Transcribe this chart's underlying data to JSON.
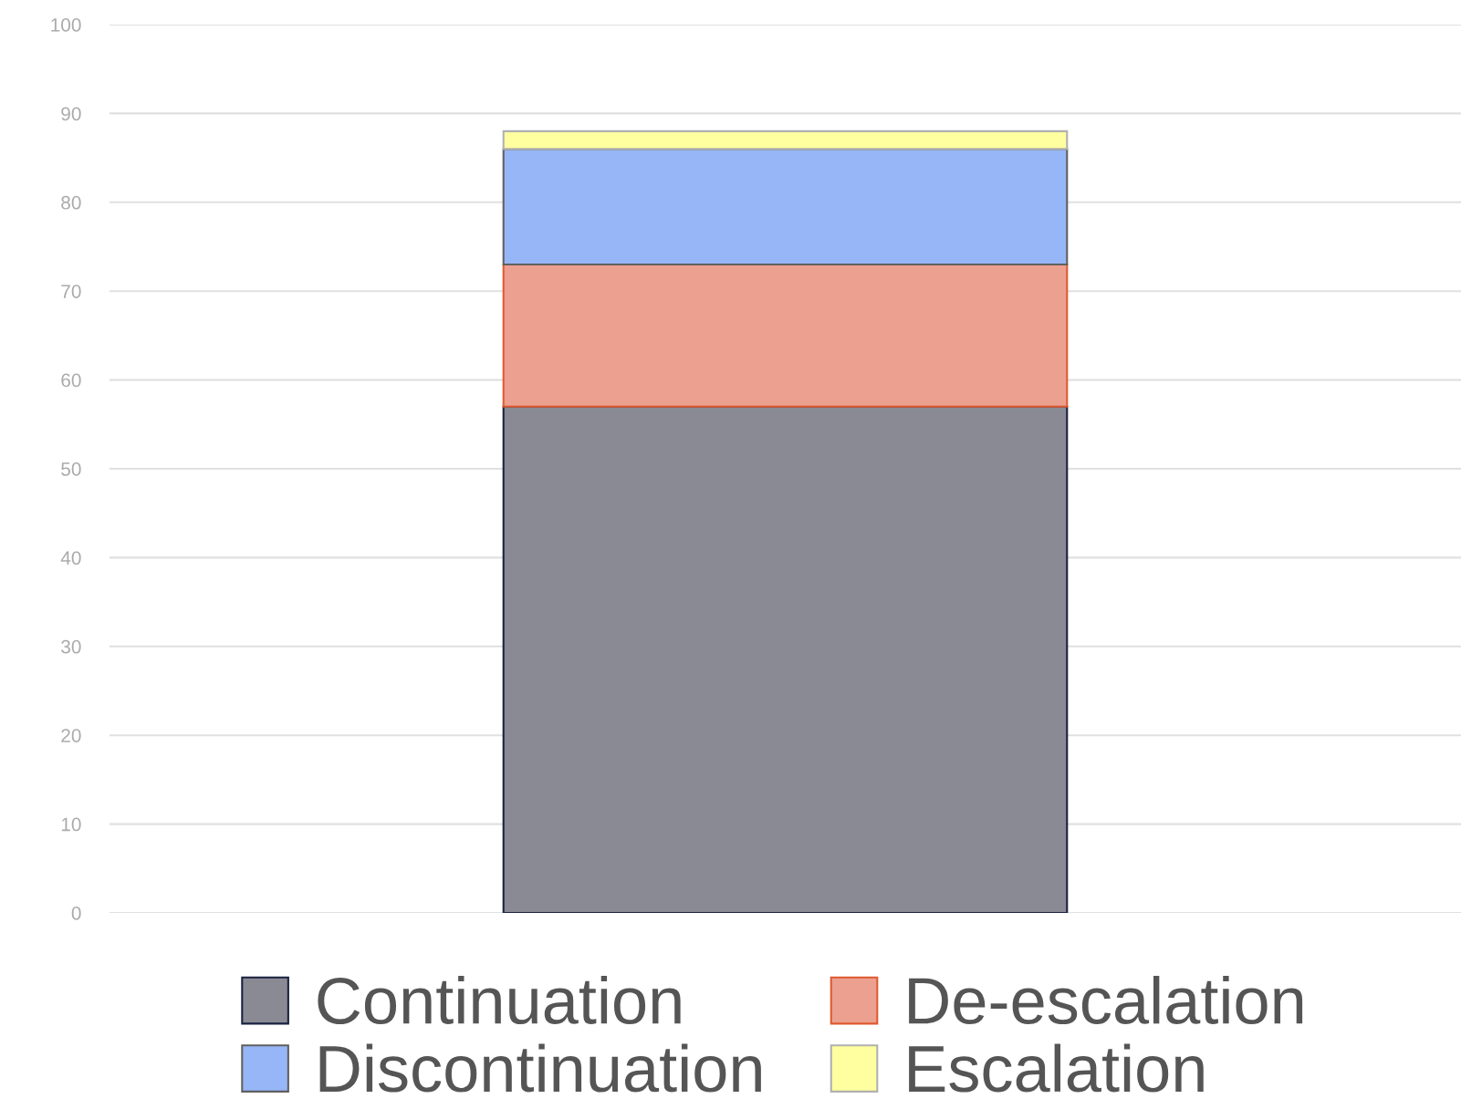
{
  "chart_data": {
    "type": "bar",
    "stacked": true,
    "categories": [
      null
    ],
    "series": [
      {
        "name": "Continuation",
        "color": "#8a8a94",
        "values": [
          57
        ]
      },
      {
        "name": "De-escalation",
        "color": "#eca090",
        "values": [
          16
        ]
      },
      {
        "name": "Discontinuation",
        "color": "#97b6f7",
        "values": [
          13
        ]
      },
      {
        "name": "Escalation",
        "color": "#ffffa0",
        "values": [
          2
        ]
      }
    ],
    "ylim": [
      0,
      100
    ],
    "yticks": [
      0,
      10,
      20,
      30,
      40,
      50,
      60,
      70,
      80,
      90,
      100
    ],
    "grid": "y",
    "legend": "bottom",
    "tick_labels": "y"
  }
}
